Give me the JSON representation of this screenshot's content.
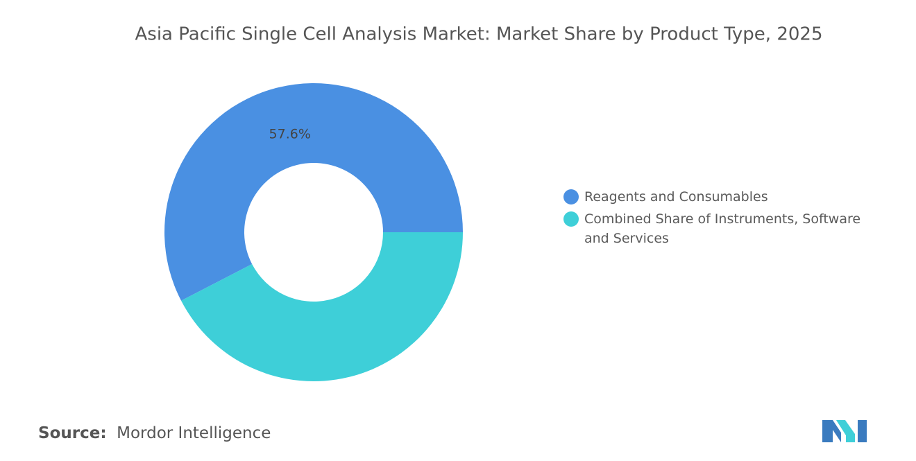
{
  "chart_data": {
    "type": "donut",
    "title": "Asia Pacific Single Cell Analysis Market: Market Share by Product Type, 2025",
    "categories": [
      "Reagents and Consumables",
      "Combined Share of Instruments, Software and Services"
    ],
    "values": [
      57.6,
      42.4
    ],
    "value_labels": [
      "57.6%",
      null
    ],
    "colors": [
      "#4a90e2",
      "#3ecfd8"
    ],
    "legend": "right",
    "source_label": "Source:",
    "source": "Mordor Intelligence"
  }
}
